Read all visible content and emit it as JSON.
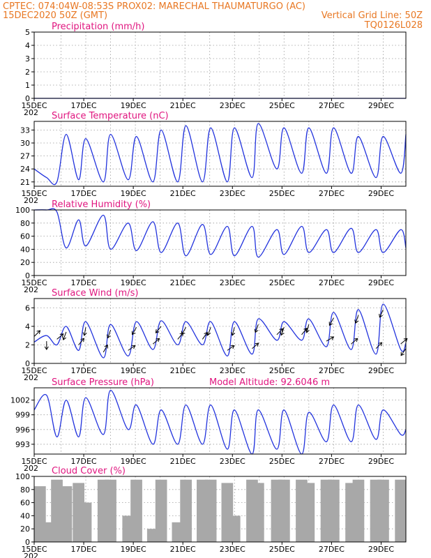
{
  "header": {
    "line1_left": "CPTEC:   074:04W-08:53S   PROX02: MARECHAL THAUMATURGO (AC)",
    "line2_left": "15DEC2020 50Z (GMT)",
    "line2_right": "Vertical Grid Line: 50Z",
    "line3_right": "TQ0126L028"
  },
  "colors": {
    "header": "#e87722",
    "panel_title": "#e0157f",
    "series": "#2233dd",
    "cloud_bars": "#a8a8a8"
  },
  "x_axis": {
    "labels": [
      "15DEC",
      "17DEC",
      "19DEC",
      "21DEC",
      "23DEC",
      "25DEC",
      "27DEC",
      "29DEC"
    ],
    "year_fragment": "202",
    "start_day": 15,
    "end_day": 30
  },
  "chart_data": [
    {
      "type": "line",
      "title": "Precipitation (mm/h)",
      "ylim": [
        0,
        5
      ],
      "yticks": [
        0,
        1,
        2,
        3,
        4,
        5
      ],
      "grid": true,
      "series": [
        {
          "x": [
            "15DEC",
            "30DEC"
          ],
          "values": [
            0,
            0
          ]
        }
      ]
    },
    {
      "type": "line",
      "title": "Surface Temperature (nC)",
      "ylim": [
        20,
        35
      ],
      "yticks": [
        21,
        24,
        27,
        30,
        33
      ],
      "grid": true,
      "series": [
        {
          "x": [
            "15DEC 00Z",
            "15DEC 12Z",
            "15DEC 22Z",
            "16DEC 07Z",
            "16DEC 19Z",
            "17DEC 02Z",
            "17DEC 19Z",
            "18DEC 02Z",
            "18DEC 19Z",
            "19DEC 03Z",
            "19DEC 19Z",
            "20DEC 03Z",
            "20DEC 19Z",
            "21DEC 03Z",
            "21DEC 19Z",
            "22DEC 03Z",
            "22DEC 19Z",
            "23DEC 02Z",
            "23DEC 19Z",
            "24DEC 01Z",
            "24DEC 19Z",
            "25DEC 02Z",
            "25DEC 19Z",
            "26DEC 02Z",
            "26DEC 19Z",
            "27DEC 02Z",
            "27DEC 19Z",
            "28DEC 02Z",
            "28DEC 19Z",
            "29DEC 02Z",
            "29DEC 19Z",
            "30DEC 00Z"
          ],
          "values": [
            24,
            22,
            21,
            32,
            21.5,
            31,
            21,
            32,
            21.5,
            31.5,
            21,
            33,
            21,
            34,
            21,
            33.5,
            21,
            33.5,
            22,
            34.5,
            24,
            33.5,
            23,
            33.5,
            23,
            33.5,
            23,
            31.5,
            22,
            31.5,
            23,
            32
          ]
        }
      ]
    },
    {
      "type": "line",
      "title": "Relative Humidity (%)",
      "ylim": [
        0,
        100
      ],
      "yticks": [
        0,
        20,
        40,
        60,
        80,
        100
      ],
      "grid": true,
      "series": [
        {
          "x": [
            "15DEC 00Z",
            "15DEC 12Z",
            "15DEC 22Z",
            "16DEC 07Z",
            "16DEC 19Z",
            "17DEC 02Z",
            "17DEC 19Z",
            "18DEC 02Z",
            "18DEC 19Z",
            "19DEC 03Z",
            "19DEC 19Z",
            "20DEC 03Z",
            "20DEC 19Z",
            "21DEC 03Z",
            "21DEC 19Z",
            "22DEC 03Z",
            "22DEC 19Z",
            "23DEC 02Z",
            "23DEC 19Z",
            "24DEC 01Z",
            "24DEC 19Z",
            "25DEC 02Z",
            "25DEC 19Z",
            "26DEC 02Z",
            "26DEC 19Z",
            "27DEC 02Z",
            "27DEC 19Z",
            "28DEC 02Z",
            "28DEC 19Z",
            "29DEC 02Z",
            "29DEC 19Z",
            "30DEC 00Z"
          ],
          "values": [
            100,
            100,
            97,
            42,
            85,
            45,
            92,
            40,
            80,
            38,
            82,
            35,
            80,
            30,
            78,
            32,
            75,
            30,
            75,
            28,
            70,
            32,
            75,
            35,
            70,
            35,
            72,
            35,
            70,
            35,
            70,
            42
          ]
        }
      ]
    },
    {
      "type": "line",
      "title": "Surface Wind (m/s)",
      "ylim": [
        0,
        7
      ],
      "yticks": [
        0,
        2,
        4,
        6
      ],
      "grid": true,
      "series": [
        {
          "x": [
            "15DEC 00Z",
            "15DEC 12Z",
            "15DEC 22Z",
            "16DEC 07Z",
            "16DEC 19Z",
            "17DEC 02Z",
            "17DEC 19Z",
            "18DEC 02Z",
            "18DEC 19Z",
            "19DEC 03Z",
            "19DEC 19Z",
            "20DEC 03Z",
            "20DEC 19Z",
            "21DEC 03Z",
            "21DEC 19Z",
            "22DEC 03Z",
            "22DEC 19Z",
            "23DEC 02Z",
            "23DEC 19Z",
            "24DEC 01Z",
            "24DEC 19Z",
            "25DEC 02Z",
            "25DEC 19Z",
            "26DEC 02Z",
            "26DEC 19Z",
            "27DEC 02Z",
            "27DEC 19Z",
            "28DEC 02Z",
            "28DEC 19Z",
            "29DEC 02Z",
            "29DEC 19Z",
            "30DEC 00Z"
          ],
          "values": [
            2.3,
            3.0,
            2.0,
            4.0,
            1.4,
            4.5,
            0.6,
            4.2,
            0.8,
            4.5,
            1.5,
            4.6,
            2.0,
            4.5,
            2.0,
            4.5,
            0.8,
            4.5,
            1.0,
            4.8,
            2.5,
            4.5,
            2.5,
            4.8,
            1.8,
            5.5,
            1.5,
            5.8,
            1.0,
            6.4,
            1.5,
            2.2
          ]
        }
      ],
      "wind_arrows_direction_deg": [
        45,
        180,
        50,
        200,
        40,
        190,
        30,
        200,
        55,
        210,
        50,
        220,
        40,
        210,
        35,
        200,
        55,
        195,
        50,
        200,
        45,
        200,
        40,
        195,
        60,
        210,
        50,
        200,
        45,
        205,
        50,
        215
      ]
    },
    {
      "type": "line",
      "title": "Surface Pressure (hPa)",
      "annotation": "Model Altitude: 92.6046 m",
      "ylim": [
        991,
        1004.5
      ],
      "yticks": [
        993,
        996,
        999,
        1002
      ],
      "grid": true,
      "series": [
        {
          "x": [
            "15DEC 00Z",
            "15DEC 12Z",
            "15DEC 22Z",
            "16DEC 07Z",
            "16DEC 19Z",
            "17DEC 02Z",
            "17DEC 19Z",
            "18DEC 02Z",
            "18DEC 19Z",
            "19DEC 03Z",
            "19DEC 19Z",
            "20DEC 03Z",
            "20DEC 19Z",
            "21DEC 03Z",
            "21DEC 19Z",
            "22DEC 03Z",
            "22DEC 19Z",
            "23DEC 02Z",
            "23DEC 19Z",
            "24DEC 01Z",
            "24DEC 19Z",
            "25DEC 02Z",
            "25DEC 19Z",
            "26DEC 02Z",
            "26DEC 19Z",
            "27DEC 02Z",
            "27DEC 19Z",
            "28DEC 02Z",
            "28DEC 19Z",
            "29DEC 02Z",
            "29DEC 19Z",
            "30DEC 00Z"
          ],
          "values": [
            1000,
            1003,
            994.5,
            1002,
            994.5,
            1002.5,
            995,
            1004,
            996,
            1001,
            993,
            1000,
            993,
            1001,
            993,
            1001,
            992,
            1000,
            991,
            1000,
            992,
            1000,
            991,
            999.5,
            993.5,
            1001,
            993.5,
            1001,
            994,
            1000,
            995,
            996
          ]
        }
      ]
    },
    {
      "type": "bar",
      "title": "Cloud Cover (%)",
      "ylim": [
        0,
        100
      ],
      "yticks": [
        0,
        20,
        40,
        60,
        80,
        100
      ],
      "grid": true,
      "series": [
        {
          "x": [
            "15DEC 00Z",
            "15DEC 12Z",
            "15DEC 22Z",
            "16DEC 07Z",
            "16DEC 19Z",
            "17DEC 02Z",
            "17DEC 19Z",
            "18DEC 02Z",
            "18DEC 19Z",
            "19DEC 03Z",
            "19DEC 19Z",
            "20DEC 03Z",
            "20DEC 19Z",
            "21DEC 03Z",
            "21DEC 19Z",
            "22DEC 03Z",
            "22DEC 19Z",
            "23DEC 02Z",
            "23DEC 19Z",
            "24DEC 01Z",
            "24DEC 19Z",
            "25DEC 02Z",
            "25DEC 19Z",
            "26DEC 02Z",
            "26DEC 19Z",
            "27DEC 02Z",
            "27DEC 19Z",
            "28DEC 02Z",
            "28DEC 19Z",
            "29DEC 02Z",
            "29DEC 19Z",
            "30DEC 00Z"
          ],
          "values": [
            85,
            30,
            95,
            85,
            90,
            60,
            95,
            95,
            40,
            95,
            20,
            95,
            30,
            95,
            95,
            95,
            90,
            40,
            95,
            90,
            95,
            95,
            95,
            90,
            95,
            95,
            90,
            95,
            95,
            95,
            95,
            85
          ]
        }
      ]
    }
  ]
}
